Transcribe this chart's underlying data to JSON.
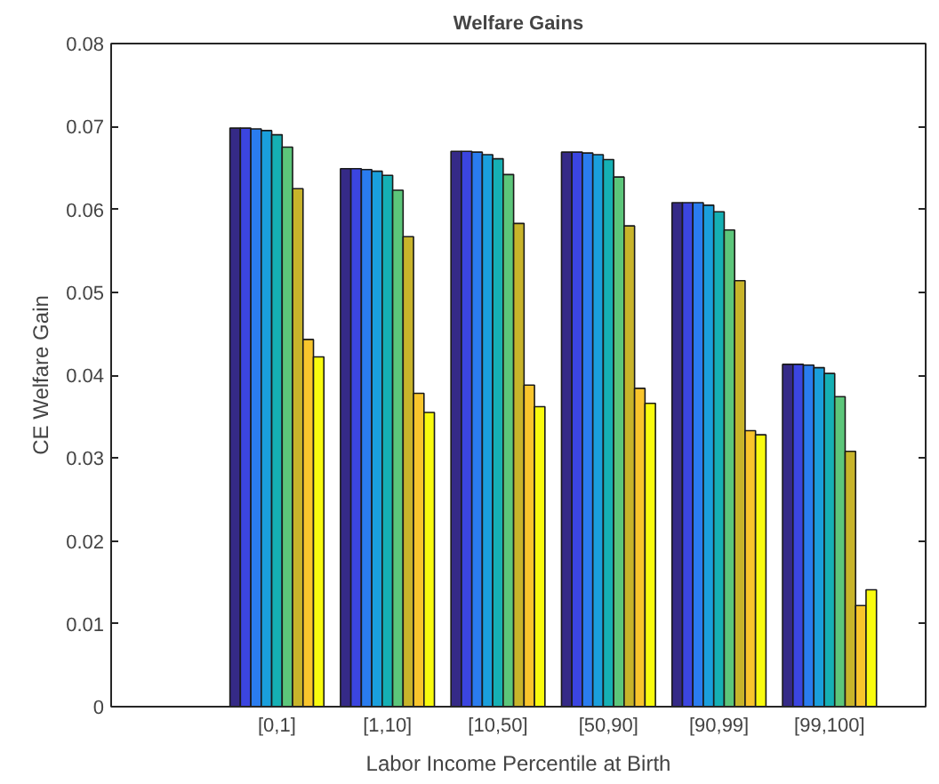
{
  "chart_data": {
    "type": "bar",
    "title": "Welfare Gains",
    "xlabel": "Labor Income Percentile at Birth",
    "ylabel": "CE Welfare Gain",
    "categories": [
      "[0,1]",
      "[1,10]",
      "[10,50]",
      "[50,90]",
      "[90,99]",
      "[99,100]"
    ],
    "ylim": [
      0,
      0.08
    ],
    "yticks": [
      0,
      0.01,
      0.02,
      0.03,
      0.04,
      0.05,
      0.06,
      0.07,
      0.08
    ],
    "grid": false,
    "series": [
      {
        "color": "#352a87",
        "values": [
          0.0698,
          0.0649,
          0.067,
          0.0669,
          0.0608,
          0.0413
        ]
      },
      {
        "color": "#3b45e0",
        "values": [
          0.0698,
          0.0649,
          0.067,
          0.0669,
          0.0608,
          0.0413
        ]
      },
      {
        "color": "#2a7cef",
        "values": [
          0.0697,
          0.0648,
          0.0669,
          0.0668,
          0.0608,
          0.0412
        ]
      },
      {
        "color": "#1a9fdc",
        "values": [
          0.0695,
          0.0646,
          0.0666,
          0.0666,
          0.0605,
          0.0409
        ]
      },
      {
        "color": "#15b0b4",
        "values": [
          0.069,
          0.0641,
          0.0661,
          0.066,
          0.0597,
          0.0402
        ]
      },
      {
        "color": "#5cc67a",
        "values": [
          0.0675,
          0.0623,
          0.0642,
          0.0639,
          0.0575,
          0.0374
        ]
      },
      {
        "color": "#c8b42a",
        "values": [
          0.0625,
          0.0567,
          0.0583,
          0.058,
          0.0514,
          0.0308
        ]
      },
      {
        "color": "#f9c52c",
        "values": [
          0.0443,
          0.0378,
          0.0388,
          0.0384,
          0.0333,
          0.0122
        ]
      },
      {
        "color": "#f9fb0e",
        "values": [
          0.0422,
          0.0355,
          0.0362,
          0.0366,
          0.0328,
          0.0141
        ]
      }
    ]
  }
}
